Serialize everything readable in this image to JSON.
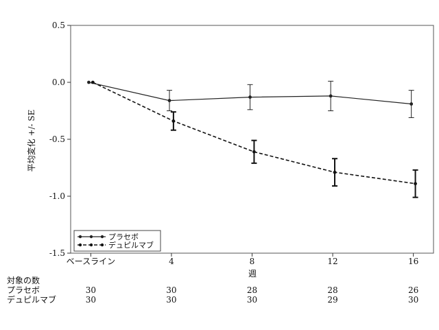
{
  "chart_data": {
    "type": "line",
    "title": "",
    "xlabel": "週",
    "ylabel": "平均変化 +/- SE",
    "x_ticks": [
      {
        "value": 0,
        "label": "ベースライン"
      },
      {
        "value": 4,
        "label": "4"
      },
      {
        "value": 8,
        "label": "8"
      },
      {
        "value": 12,
        "label": "12"
      },
      {
        "value": 16,
        "label": "16"
      }
    ],
    "xlim": [
      -1,
      17
    ],
    "ylim": [
      -1.5,
      0.5
    ],
    "y_ticks": [
      "0.5",
      "0.0",
      "-0.5",
      "-1.0",
      "-1.5"
    ],
    "y_tick_values": [
      0.5,
      0.0,
      -0.5,
      -1.0,
      -1.5
    ],
    "grid": false,
    "legend_position": "bottom-left",
    "series": [
      {
        "name": "プラセボ",
        "style": "solid",
        "color": "#222222",
        "points": [
          {
            "x": -0.1,
            "y": 0.0,
            "se": 0.0
          },
          {
            "x": 3.9,
            "y": -0.16,
            "se": 0.09
          },
          {
            "x": 7.9,
            "y": -0.13,
            "se": 0.11
          },
          {
            "x": 11.9,
            "y": -0.12,
            "se": 0.13
          },
          {
            "x": 15.9,
            "y": -0.19,
            "se": 0.12
          }
        ]
      },
      {
        "name": "デュピルマブ",
        "style": "dashed",
        "color": "#111111",
        "points": [
          {
            "x": 0.1,
            "y": 0.0,
            "se": 0.0
          },
          {
            "x": 4.1,
            "y": -0.34,
            "se": 0.08
          },
          {
            "x": 8.1,
            "y": -0.61,
            "se": 0.1
          },
          {
            "x": 12.1,
            "y": -0.79,
            "se": 0.12
          },
          {
            "x": 16.1,
            "y": -0.89,
            "se": 0.12
          }
        ]
      }
    ]
  },
  "counts_table": {
    "title": "対象の数",
    "rows": [
      {
        "label": "プラセボ",
        "values": [
          "30",
          "30",
          "28",
          "28",
          "26"
        ]
      },
      {
        "label": "デュピルマブ",
        "values": [
          "30",
          "30",
          "30",
          "29",
          "30"
        ]
      }
    ]
  }
}
